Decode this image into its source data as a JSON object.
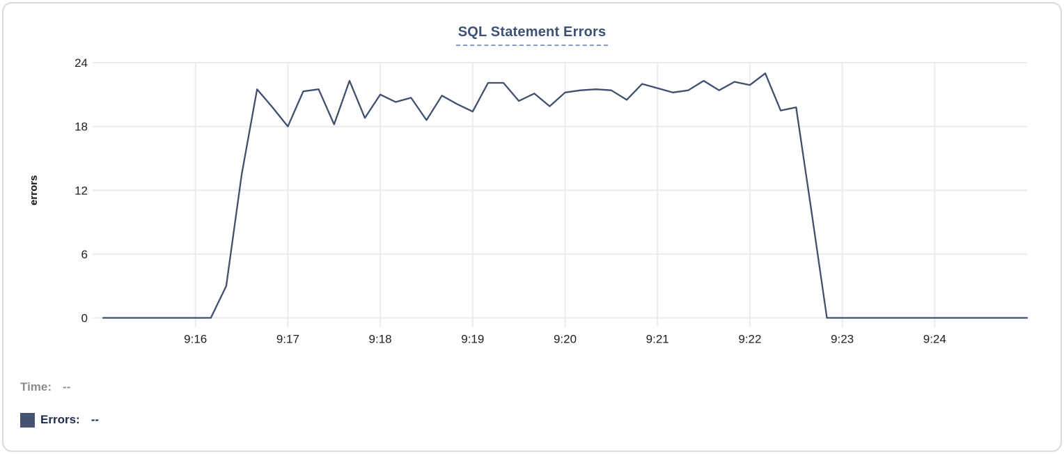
{
  "title": "SQL Statement Errors",
  "tooltip": {
    "time_label": "Time:",
    "time_value": "--",
    "errors_label": "Errors:",
    "errors_value": "--"
  },
  "colors": {
    "line": "#3f4f6d",
    "legend_swatch": "#44536f",
    "title_text": "#3e5174",
    "title_underline": "#8a99b8",
    "grid": "#ebebeb",
    "axis_text": "#1f1f1f",
    "muted_text": "#8d8d8d",
    "legend_text": "#1e2b4f",
    "card_border": "#d9d9d9"
  },
  "chart_data": {
    "type": "line",
    "title": "SQL Statement Errors",
    "xlabel": "",
    "ylabel": "errors",
    "ylim": [
      0,
      24
    ],
    "yticks": [
      0,
      6,
      12,
      18,
      24
    ],
    "x_tick_labels": [
      "9:16",
      "9:17",
      "9:18",
      "9:19",
      "9:20",
      "9:21",
      "9:22",
      "9:23",
      "9:24"
    ],
    "x_start": "9:15:00",
    "x_end": "9:25:00",
    "interval_seconds": 10,
    "grid": true,
    "legend_position": "bottom-left",
    "series": [
      {
        "name": "Errors",
        "values": [
          0,
          0,
          0,
          0,
          0,
          0,
          0,
          0,
          3,
          13.5,
          21.5,
          19.8,
          18,
          21.3,
          21.5,
          18.2,
          22.3,
          18.8,
          21,
          20.3,
          20.7,
          18.6,
          20.9,
          20.1,
          19.4,
          22.1,
          22.1,
          20.4,
          21.1,
          19.9,
          21.2,
          21.4,
          21.5,
          21.4,
          20.5,
          22,
          21.6,
          21.2,
          21.4,
          22.3,
          21.4,
          22.2,
          21.9,
          23,
          19.5,
          19.8,
          10,
          0,
          0,
          0,
          0,
          0,
          0,
          0,
          0,
          0,
          0,
          0,
          0,
          0,
          0
        ]
      }
    ]
  }
}
